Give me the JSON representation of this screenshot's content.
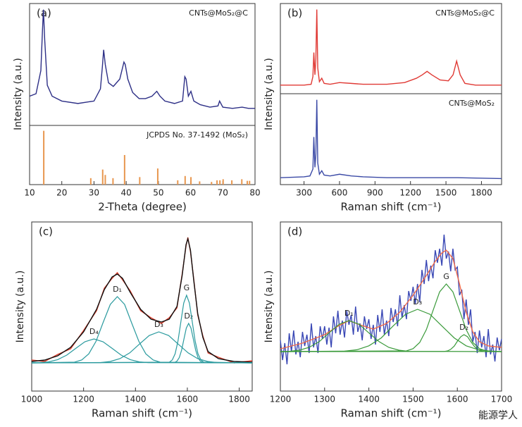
{
  "chart_data": [
    {
      "type": "line",
      "label": "(a)",
      "annotation": "CNTs@MoS₂@C",
      "ylabel": "Intensity (a.u.)",
      "xlim": [
        10,
        80
      ],
      "ylim": [
        0,
        100
      ],
      "series": [
        {
          "color": "#2d2f86",
          "x": [
            10,
            12,
            13.5,
            14,
            14.3,
            14.7,
            15.5,
            17,
            20,
            25,
            30,
            32,
            32.6,
            33,
            33.5,
            34.5,
            36,
            38,
            39.3,
            39.7,
            40.5,
            42,
            44,
            46,
            48,
            49.5,
            50.5,
            52,
            55,
            57.5,
            58.2,
            58.6,
            59.3,
            60.1,
            61,
            63,
            66,
            68.5,
            69,
            70,
            73,
            76,
            78,
            80
          ],
          "values": [
            24,
            26,
            45,
            78,
            95,
            70,
            33,
            24,
            20,
            18,
            20,
            30,
            48,
            62,
            50,
            35,
            32,
            38,
            52,
            50,
            38,
            27,
            22,
            22,
            24,
            28,
            24,
            20,
            18,
            20,
            40,
            38,
            24,
            28,
            20,
            17,
            15,
            16,
            20,
            15,
            14,
            15,
            14,
            14
          ]
        }
      ]
    },
    {
      "type": "bar",
      "annotation": "JCPDS No. 37-1492 (MoS₂)",
      "xlabel": "2-Theta (degree)",
      "xlim": [
        10,
        80
      ],
      "ylim": [
        0,
        110
      ],
      "xticks": [
        10,
        20,
        30,
        40,
        50,
        60,
        70,
        80
      ],
      "color": "#e8974f",
      "x": [
        14.4,
        29,
        32.7,
        33.5,
        35.9,
        39.5,
        44.2,
        49.8,
        56,
        58.3,
        60.1,
        62.8,
        66.5,
        68.2,
        69.1,
        70.1,
        72.8,
        75.9,
        77.6,
        78.3
      ],
      "values": [
        100,
        12,
        28,
        18,
        12,
        55,
        14,
        30,
        8,
        16,
        14,
        6,
        5,
        8,
        8,
        10,
        8,
        10,
        7,
        7
      ]
    },
    {
      "type": "line",
      "label": "(b)",
      "annotation": "CNTs@MoS₂@C",
      "ylabel": "Intensity (a.u.)",
      "xlim": [
        100,
        1970
      ],
      "ylim": [
        0,
        105
      ],
      "series": [
        {
          "color": "#e03a35",
          "x": [
            100,
            300,
            360,
            375,
            383,
            392,
            400,
            408,
            416,
            430,
            450,
            470,
            520,
            600,
            700,
            800,
            1000,
            1150,
            1250,
            1300,
            1340,
            1380,
            1450,
            1520,
            1560,
            1590,
            1620,
            1660,
            1750,
            1900,
            1970
          ],
          "values": [
            10,
            10,
            11,
            20,
            48,
            22,
            40,
            98,
            30,
            14,
            18,
            12,
            11,
            13,
            12,
            11,
            11,
            13,
            18,
            22,
            26,
            22,
            16,
            15,
            22,
            38,
            22,
            12,
            10,
            10,
            10
          ]
        }
      ]
    },
    {
      "type": "line",
      "annotation": "CNTs@MoS₂",
      "xlabel": "Raman shift (cm⁻¹)",
      "xlim": [
        100,
        1970
      ],
      "ylim": [
        0,
        105
      ],
      "xticks": [
        300,
        600,
        900,
        1200,
        1500,
        1800
      ],
      "series": [
        {
          "color": "#3b4aa6",
          "x": [
            100,
            300,
            350,
            375,
            383,
            392,
            400,
            408,
            416,
            430,
            450,
            470,
            520,
            600,
            700,
            800,
            1000,
            1300,
            1600,
            1970
          ],
          "values": [
            8,
            9,
            10,
            18,
            55,
            20,
            35,
            98,
            25,
            12,
            16,
            11,
            10,
            12,
            10,
            9,
            8,
            8,
            8,
            7
          ]
        }
      ]
    },
    {
      "type": "line",
      "label": "(c)",
      "ylabel": "Intensity (a.u.)",
      "xlabel": "Raman shift (cm⁻¹)",
      "xlim": [
        1000,
        1850
      ],
      "ylim": [
        -20,
        100
      ],
      "xticks": [
        1000,
        1200,
        1400,
        1600,
        1800
      ],
      "series": [
        {
          "color": "#e0402e",
          "x": [
            1000,
            1050,
            1100,
            1150,
            1200,
            1250,
            1280,
            1310,
            1330,
            1350,
            1380,
            1420,
            1460,
            1500,
            1530,
            1560,
            1580,
            1595,
            1602,
            1612,
            1625,
            1640,
            1660,
            1680,
            1720,
            1780,
            1850
          ],
          "values": [
            2,
            1,
            6,
            10,
            23,
            37,
            53,
            60,
            64,
            59,
            51,
            37,
            32,
            28,
            32,
            39,
            63,
            83,
            89,
            79,
            59,
            34,
            19,
            7,
            4,
            0,
            1.5
          ]
        },
        {
          "color": "#111111",
          "x": [
            1000,
            1050,
            1100,
            1150,
            1200,
            1250,
            1280,
            1310,
            1330,
            1350,
            1380,
            1420,
            1460,
            1500,
            1530,
            1560,
            1580,
            1595,
            1602,
            1612,
            1625,
            1640,
            1660,
            1680,
            1720,
            1780,
            1850
          ],
          "values": [
            1,
            2,
            5,
            11,
            22,
            38,
            52,
            61,
            63,
            60,
            50,
            38,
            31,
            29,
            31,
            40,
            62,
            84,
            88,
            80,
            58,
            35,
            18,
            8,
            3,
            1,
            0.5
          ]
        },
        {
          "name": "D₄",
          "color": "#2a9a9e",
          "x": [
            1000,
            1030,
            1065,
            1100,
            1135,
            1170,
            1205,
            1240,
            1275,
            1310,
            1345,
            1380,
            1415,
            1450,
            1850
          ],
          "values": [
            0,
            0.2,
            0.7,
            2.3,
            5.5,
            10.3,
            15,
            17,
            15,
            10.3,
            5.5,
            2.3,
            0.7,
            0.2,
            0
          ]
        },
        {
          "name": "D₁",
          "color": "#2a9a9e",
          "x": [
            1000,
            1165,
            1193,
            1220,
            1248,
            1275,
            1303,
            1330,
            1358,
            1385,
            1413,
            1440,
            1468,
            1495,
            1850
          ],
          "values": [
            0,
            0.5,
            2.1,
            6.4,
            15.3,
            28.5,
            41.5,
            47,
            41.5,
            28.5,
            15.3,
            6.4,
            2.1,
            0.5,
            0
          ]
        },
        {
          "name": "D₃",
          "color": "#2a9a9e",
          "x": [
            1000,
            1265,
            1303,
            1340,
            1378,
            1415,
            1453,
            1490,
            1528,
            1565,
            1603,
            1640,
            1678,
            1715,
            1850
          ],
          "values": [
            0,
            0.2,
            1,
            3,
            7.1,
            13.3,
            19.4,
            22,
            19.4,
            13.3,
            7.1,
            3,
            1,
            0.2,
            0
          ]
        },
        {
          "name": "D₂",
          "color": "#2a9a9e",
          "x": [
            1000,
            1551,
            1560,
            1569,
            1578,
            1587,
            1596,
            1605,
            1614,
            1623,
            1632,
            1641,
            1650,
            1659,
            1850
          ],
          "values": [
            0,
            0.3,
            1.2,
            3.8,
            9.1,
            17,
            24.7,
            28,
            24.7,
            17,
            9.1,
            3.8,
            1.2,
            0.3,
            0
          ]
        },
        {
          "name": "G",
          "color": "#2a9a9e",
          "x": [
            1000,
            1531,
            1542,
            1553,
            1564,
            1575,
            1586,
            1597,
            1608,
            1619,
            1630,
            1641,
            1652,
            1663,
            1850
          ],
          "values": [
            0,
            0.5,
            2.1,
            6.5,
            15.6,
            29.1,
            42.4,
            48,
            42.4,
            29.1,
            15.6,
            6.5,
            2.1,
            0.5,
            0
          ]
        }
      ]
    },
    {
      "type": "line",
      "label": "(d)",
      "ylabel": "Intensity (a.u.)",
      "xlabel": "Raman shift (cm⁻¹)",
      "xlim": [
        1200,
        1700
      ],
      "ylim": [
        -20,
        100
      ],
      "xticks": [
        1200,
        1300,
        1400,
        1500,
        1600,
        1700
      ],
      "series": [
        {
          "color": "#3a48b5",
          "x": [
            1200,
            1205,
            1210,
            1215,
            1220,
            1225,
            1230,
            1235,
            1240,
            1245,
            1250,
            1255,
            1260,
            1265,
            1270,
            1275,
            1280,
            1285,
            1290,
            1295,
            1300,
            1305,
            1310,
            1315,
            1320,
            1325,
            1330,
            1335,
            1340,
            1345,
            1350,
            1355,
            1360,
            1365,
            1370,
            1375,
            1380,
            1385,
            1390,
            1395,
            1400,
            1405,
            1410,
            1415,
            1420,
            1425,
            1430,
            1435,
            1440,
            1445,
            1450,
            1455,
            1460,
            1465,
            1470,
            1475,
            1480,
            1485,
            1490,
            1495,
            1500,
            1505,
            1510,
            1515,
            1520,
            1525,
            1530,
            1535,
            1540,
            1545,
            1550,
            1555,
            1560,
            1565,
            1570,
            1575,
            1580,
            1585,
            1590,
            1595,
            1600,
            1605,
            1610,
            1615,
            1620,
            1625,
            1630,
            1635,
            1640,
            1645,
            1650,
            1655,
            1660,
            1665,
            1670,
            1675,
            1680,
            1685,
            1690,
            1695,
            1700
          ],
          "values": [
            16,
            2,
            14,
            -1,
            21,
            8,
            23,
            6,
            15,
            4,
            22,
            12,
            20,
            7,
            28,
            11,
            19,
            7,
            26,
            17,
            26,
            13,
            25,
            11,
            33,
            21,
            37,
            20,
            30,
            18,
            37,
            27,
            34,
            20,
            40,
            22,
            28,
            16,
            33,
            24,
            31,
            17,
            27,
            13,
            34,
            22,
            38,
            20,
            30,
            19,
            39,
            29,
            38,
            26,
            48,
            32,
            41,
            31,
            51,
            44,
            54,
            42,
            56,
            43,
            66,
            56,
            73,
            58,
            69,
            60,
            80,
            71,
            81,
            69,
            91,
            74,
            79,
            65,
            81,
            66,
            68,
            48,
            52,
            31,
            45,
            27,
            38,
            15,
            22,
            7,
            23,
            11,
            19,
            4,
            24,
            6,
            13,
            1,
            18,
            9,
            17
          ]
        },
        {
          "color": "#f06a4a",
          "x": [
            1200,
            1250,
            1300,
            1330,
            1355,
            1380,
            1410,
            1440,
            1470,
            1500,
            1530,
            1550,
            1565,
            1575,
            1590,
            1605,
            1620,
            1635,
            1650,
            1670,
            1700
          ],
          "values": [
            10,
            14,
            20,
            26,
            30,
            27,
            24,
            28,
            36,
            48,
            62,
            72,
            78,
            80,
            74,
            56,
            36,
            22,
            15,
            12,
            11
          ]
        },
        {
          "name": "D₁",
          "color": "#3a9a3a",
          "x": [
            1200,
            1220,
            1243,
            1265,
            1288,
            1310,
            1333,
            1355,
            1378,
            1400,
            1423,
            1445,
            1468,
            1490,
            1700
          ],
          "values": [
            8,
            8.2,
            9,
            11,
            15.1,
            21.3,
            27.4,
            30,
            27.4,
            21.3,
            15.1,
            11,
            9,
            8.2,
            8
          ]
        },
        {
          "name": "D₃",
          "color": "#3a9a3a",
          "x": [
            1200,
            1345,
            1373,
            1400,
            1428,
            1455,
            1483,
            1510,
            1538,
            1565,
            1593,
            1620,
            1648,
            1675,
            1700
          ],
          "values": [
            8,
            8.3,
            9.3,
            12.1,
            17.7,
            26.2,
            34.5,
            38,
            34.5,
            26.2,
            17.7,
            12.1,
            9.3,
            8.3,
            8
          ]
        },
        {
          "name": "G",
          "color": "#3a9a3a",
          "x": [
            1200,
            1485,
            1500,
            1515,
            1530,
            1545,
            1560,
            1575,
            1590,
            1605,
            1620,
            1635,
            1650,
            1665,
            1700
          ],
          "values": [
            8,
            8.5,
            10.1,
            14.5,
            23.6,
            37.1,
            50.4,
            56,
            50.4,
            37.1,
            23.6,
            14.5,
            10.1,
            8.5,
            8
          ]
        },
        {
          "name": "D₂",
          "color": "#3a9a3a",
          "x": [
            1200,
            1570,
            1578,
            1585,
            1593,
            1600,
            1608,
            1615,
            1623,
            1630,
            1638,
            1645,
            1653,
            1660,
            1700
          ],
          "values": [
            8,
            8.1,
            8.5,
            9.6,
            11.9,
            15.3,
            18.6,
            20,
            18.6,
            15.3,
            11.9,
            9.6,
            8.5,
            8.1,
            8
          ]
        }
      ]
    }
  ],
  "watermark": "能源学人"
}
